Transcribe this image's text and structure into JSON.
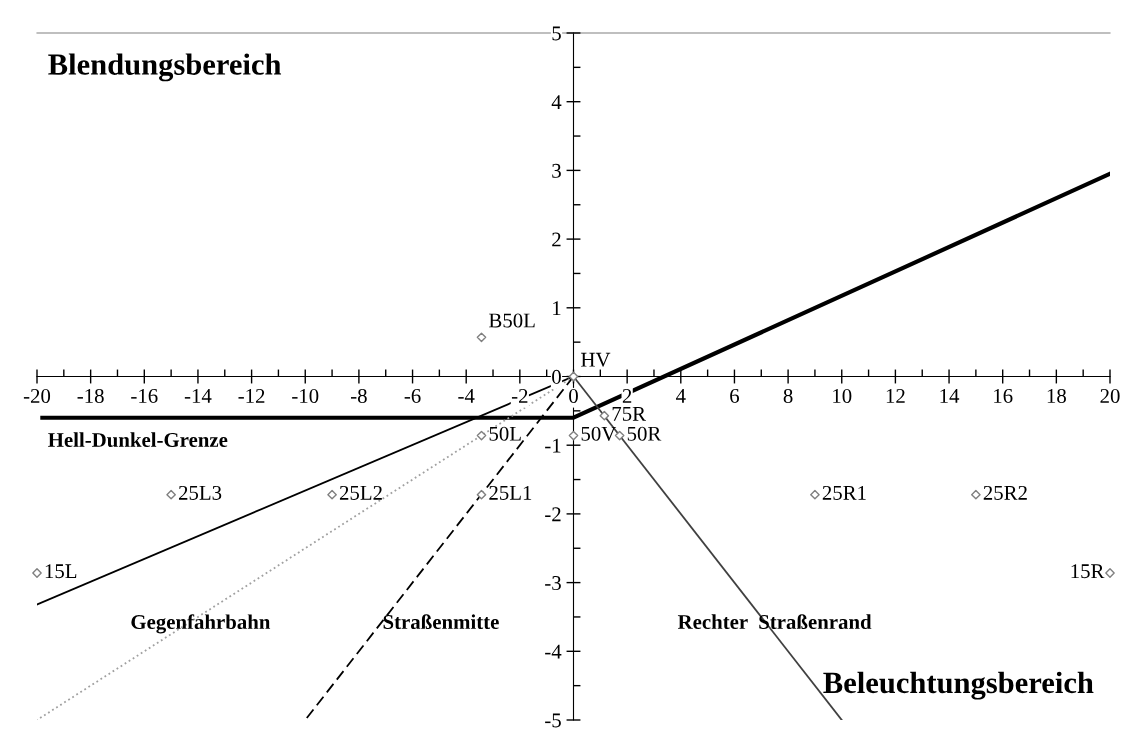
{
  "chart_data": {
    "type": "scatter",
    "xlim": [
      -20,
      20
    ],
    "ylim": [
      -5,
      5
    ],
    "xticks": [
      -20,
      {
        "value": -19,
        "label": null
      },
      -18,
      {
        "value": -17,
        "label": null
      },
      -16,
      {
        "value": -15,
        "label": null
      },
      -14,
      {
        "value": -13,
        "label": null
      },
      -12,
      {
        "value": -11,
        "label": null
      },
      -10,
      {
        "value": -9,
        "label": null
      },
      -8,
      {
        "value": -7,
        "label": null
      },
      -6,
      {
        "value": -5,
        "label": null
      },
      -4,
      {
        "value": -3,
        "label": null
      },
      -2,
      {
        "value": -1,
        "label": null
      },
      0,
      {
        "value": 1,
        "label": null
      },
      2,
      {
        "value": 3,
        "label": null
      },
      4,
      {
        "value": 5,
        "label": null
      },
      6,
      {
        "value": 7,
        "label": null
      },
      8,
      {
        "value": 9,
        "label": null
      },
      10,
      {
        "value": 11,
        "label": null
      },
      12,
      {
        "value": 13,
        "label": null
      },
      14,
      {
        "value": 15,
        "label": null
      },
      16,
      {
        "value": 17,
        "label": null
      },
      18,
      {
        "value": 19,
        "label": null
      },
      20
    ],
    "yticks": [
      -5,
      {
        "value": -4.5,
        "label": null
      },
      -4,
      {
        "value": -3.5,
        "label": null
      },
      -3,
      {
        "value": -2.5,
        "label": null
      },
      -2,
      {
        "value": -1.5,
        "label": null
      },
      -1,
      {
        "value": -0.5,
        "label": null
      },
      0,
      {
        "value": 0.5,
        "label": null
      },
      1,
      {
        "value": 1.5,
        "label": null
      },
      2,
      {
        "value": 2.5,
        "label": null
      },
      3,
      {
        "value": 3.5,
        "label": null
      },
      4,
      {
        "value": 4.5,
        "label": null
      },
      5
    ],
    "grid": false,
    "legend": false,
    "series": [
      {
        "type": "line",
        "marker": "none",
        "color": "#000000",
        "line_style": "solid",
        "x": [
          -19.8,
          0,
          20
        ],
        "values": [
          -0.6,
          -0.6,
          2.95
        ]
      },
      {
        "type": "line",
        "color": "#000000",
        "line_style": "solid",
        "x": [
          0,
          -20
        ],
        "values": [
          0,
          -3.32
        ]
      },
      {
        "type": "line",
        "marker": "none",
        "color": "#a0a0a0",
        "line_style": "dotted",
        "x": [
          0,
          -20
        ],
        "values": [
          0,
          -5
        ]
      },
      {
        "type": "line",
        "marker": "none",
        "color": "#000000",
        "line_style": "dashed",
        "x": [
          0,
          -10
        ],
        "values": [
          0,
          -5
        ]
      },
      {
        "type": "line",
        "marker": "none",
        "color": "#404040",
        "line_style": "solid",
        "x": [
          0,
          10
        ],
        "values": [
          0,
          -5
        ]
      },
      {
        "marker": "diamond",
        "color": "#808080",
        "x": [
          -3.43,
          0,
          1.15,
          1.72,
          0,
          -3.43,
          -3.43,
          -9,
          -15,
          9,
          15,
          -20,
          20
        ],
        "values": [
          0.57,
          0,
          -0.57,
          -0.86,
          -0.86,
          -0.86,
          -1.72,
          -1.72,
          -1.72,
          -1.72,
          -1.72,
          -2.86,
          -2.86
        ]
      }
    ],
    "annotations": [
      {
        "text": "B50L",
        "x": -3.43,
        "y": 0.57
      },
      {
        "text": "HV",
        "x": 0,
        "y": 0
      },
      {
        "text": "75R",
        "x": 1.15,
        "y": -0.57
      },
      {
        "text": "50R",
        "x": 1.72,
        "y": -0.86
      },
      {
        "text": "50V",
        "x": 0,
        "y": -0.86
      },
      {
        "text": "50L",
        "x": -3.43,
        "y": -0.86
      },
      {
        "text": "25L1",
        "x": -3.43,
        "y": -1.72
      },
      {
        "text": "25L2",
        "x": -9,
        "y": -1.72
      },
      {
        "text": "25L3",
        "x": -15,
        "y": -1.72
      },
      {
        "text": "25R1",
        "x": 9,
        "y": -1.72
      },
      {
        "text": "25R2",
        "x": 15,
        "y": -1.72
      },
      {
        "text": "15L",
        "x": -20,
        "y": -2.86
      },
      {
        "text": "15R",
        "x": 20,
        "y": -2.86
      },
      "Blendungsbereich",
      "Beleuchtungsbereich",
      "Hell-Dunkel-Grenze",
      "Gegenfahrbahn",
      "Straßenmitte",
      "Rechter  Straßenrand"
    ]
  }
}
